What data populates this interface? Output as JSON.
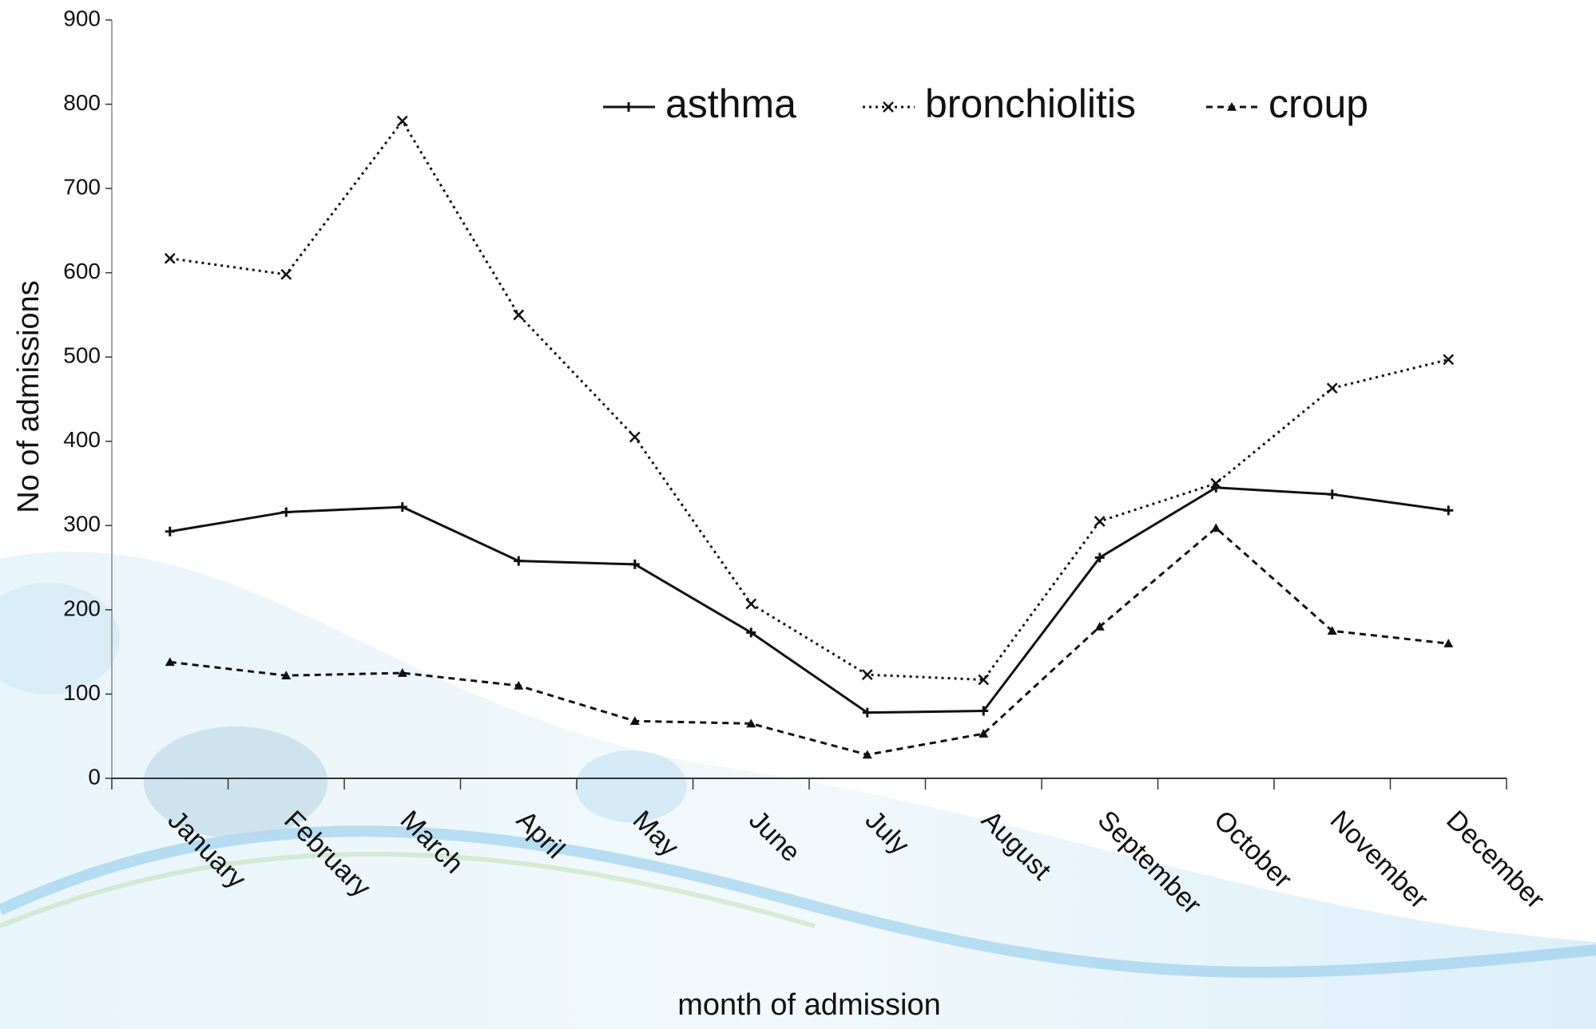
{
  "chart_data": {
    "type": "line",
    "x_label": "month of admission",
    "y_label": "No of admissions",
    "categories": [
      "January",
      "February",
      "March",
      "April",
      "May",
      "June",
      "July",
      "August",
      "September",
      "October",
      "November",
      "December"
    ],
    "series": [
      {
        "name": "asthma",
        "color": "#111111",
        "dash": "none",
        "marker": "plus",
        "values": [
          293,
          316,
          322,
          258,
          254,
          173,
          78,
          80,
          262,
          345,
          337,
          318
        ]
      },
      {
        "name": "bronchiolitis",
        "color": "#111111",
        "dash": "3 5",
        "marker": "cross",
        "values": [
          617,
          598,
          780,
          550,
          405,
          207,
          123,
          117,
          305,
          350,
          463,
          497
        ]
      },
      {
        "name": "croup",
        "color": "#111111",
        "dash": "8 6",
        "marker": "triangle",
        "values": [
          138,
          122,
          125,
          110,
          68,
          65,
          28,
          53,
          180,
          297,
          175,
          160
        ]
      }
    ],
    "ylim": [
      0,
      900
    ],
    "yticks": [
      0,
      100,
      200,
      300,
      400,
      500,
      600,
      700,
      800,
      900
    ]
  }
}
